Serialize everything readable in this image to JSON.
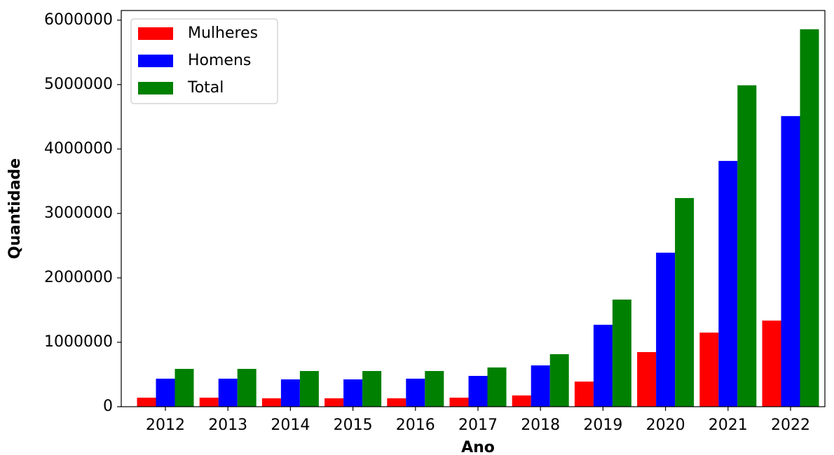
{
  "chart_data": {
    "type": "bar",
    "xlabel": "Ano",
    "ylabel": "Quantidade",
    "categories": [
      "2012",
      "2013",
      "2014",
      "2015",
      "2016",
      "2017",
      "2018",
      "2019",
      "2020",
      "2021",
      "2022"
    ],
    "series": [
      {
        "name": "Mulheres",
        "color": "#ff0000",
        "values": [
          140000,
          140000,
          130000,
          130000,
          130000,
          140000,
          175000,
          390000,
          848000,
          1150000,
          1337000
        ]
      },
      {
        "name": "Homens",
        "color": "#0000ff",
        "values": [
          435000,
          435000,
          424000,
          424000,
          435000,
          478000,
          641000,
          1272000,
          2391000,
          3815000,
          4511000
        ]
      },
      {
        "name": "Total",
        "color": "#008000",
        "values": [
          587000,
          587000,
          554000,
          554000,
          554000,
          609000,
          815000,
          1663000,
          3239000,
          4989000,
          5859000
        ]
      }
    ],
    "ylim": [
      0,
      6150000
    ],
    "yticks": [
      0,
      1000000,
      2000000,
      3000000,
      4000000,
      5000000,
      6000000
    ],
    "legend": "upper left"
  }
}
